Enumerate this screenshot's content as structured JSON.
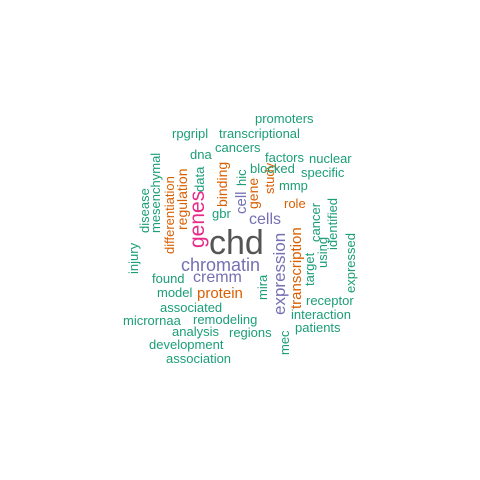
{
  "words": [
    {
      "text": "chd",
      "color": "#555555"
    },
    {
      "text": "genes",
      "color": "#e7298a"
    },
    {
      "text": "chromatin",
      "color": "#7570b3"
    },
    {
      "text": "expression",
      "color": "#7570b3"
    },
    {
      "text": "cremm",
      "color": "#7570b3"
    },
    {
      "text": "cells",
      "color": "#7570b3"
    },
    {
      "text": "transcription",
      "color": "#d95f02"
    },
    {
      "text": "protein",
      "color": "#d95f02"
    },
    {
      "text": "cell",
      "color": "#7570b3"
    },
    {
      "text": "gene",
      "color": "#d95f02"
    },
    {
      "text": "binding",
      "color": "#d95f02"
    },
    {
      "text": "regulation",
      "color": "#d95f02"
    },
    {
      "text": "differentiation",
      "color": "#d95f02"
    },
    {
      "text": "role",
      "color": "#d95f02"
    },
    {
      "text": "study",
      "color": "#d95f02"
    },
    {
      "text": "promoters",
      "color": "#1b9e77"
    },
    {
      "text": "rpgripl",
      "color": "#1b9e77"
    },
    {
      "text": "transcriptional",
      "color": "#1b9e77"
    },
    {
      "text": "cancers",
      "color": "#1b9e77"
    },
    {
      "text": "dna",
      "color": "#1b9e77"
    },
    {
      "text": "factors",
      "color": "#1b9e77"
    },
    {
      "text": "nuclear",
      "color": "#1b9e77"
    },
    {
      "text": "blocked",
      "color": "#1b9e77"
    },
    {
      "text": "specific",
      "color": "#1b9e77"
    },
    {
      "text": "mmp",
      "color": "#1b9e77"
    },
    {
      "text": "hic",
      "color": "#1b9e77"
    },
    {
      "text": "data",
      "color": "#1b9e77"
    },
    {
      "text": "mesenchymal",
      "color": "#1b9e77"
    },
    {
      "text": "disease",
      "color": "#1b9e77"
    },
    {
      "text": "gbr",
      "color": "#1b9e77"
    },
    {
      "text": "identified",
      "color": "#1b9e77"
    },
    {
      "text": "cancer",
      "color": "#1b9e77"
    },
    {
      "text": "target",
      "color": "#1b9e77"
    },
    {
      "text": "using",
      "color": "#1b9e77"
    },
    {
      "text": "expressed",
      "color": "#1b9e77"
    },
    {
      "text": "injury",
      "color": "#1b9e77"
    },
    {
      "text": "found",
      "color": "#1b9e77"
    },
    {
      "text": "model",
      "color": "#1b9e77"
    },
    {
      "text": "mira",
      "color": "#1b9e77"
    },
    {
      "text": "associated",
      "color": "#1b9e77"
    },
    {
      "text": "receptor",
      "color": "#1b9e77"
    },
    {
      "text": "micrornaa",
      "color": "#1b9e77"
    },
    {
      "text": "remodeling",
      "color": "#1b9e77"
    },
    {
      "text": "interaction",
      "color": "#1b9e77"
    },
    {
      "text": "analysis",
      "color": "#1b9e77"
    },
    {
      "text": "regions",
      "color": "#1b9e77"
    },
    {
      "text": "patients",
      "color": "#1b9e77"
    },
    {
      "text": "mec",
      "color": "#1b9e77"
    },
    {
      "text": "development",
      "color": "#1b9e77"
    },
    {
      "text": "association",
      "color": "#1b9e77"
    }
  ]
}
